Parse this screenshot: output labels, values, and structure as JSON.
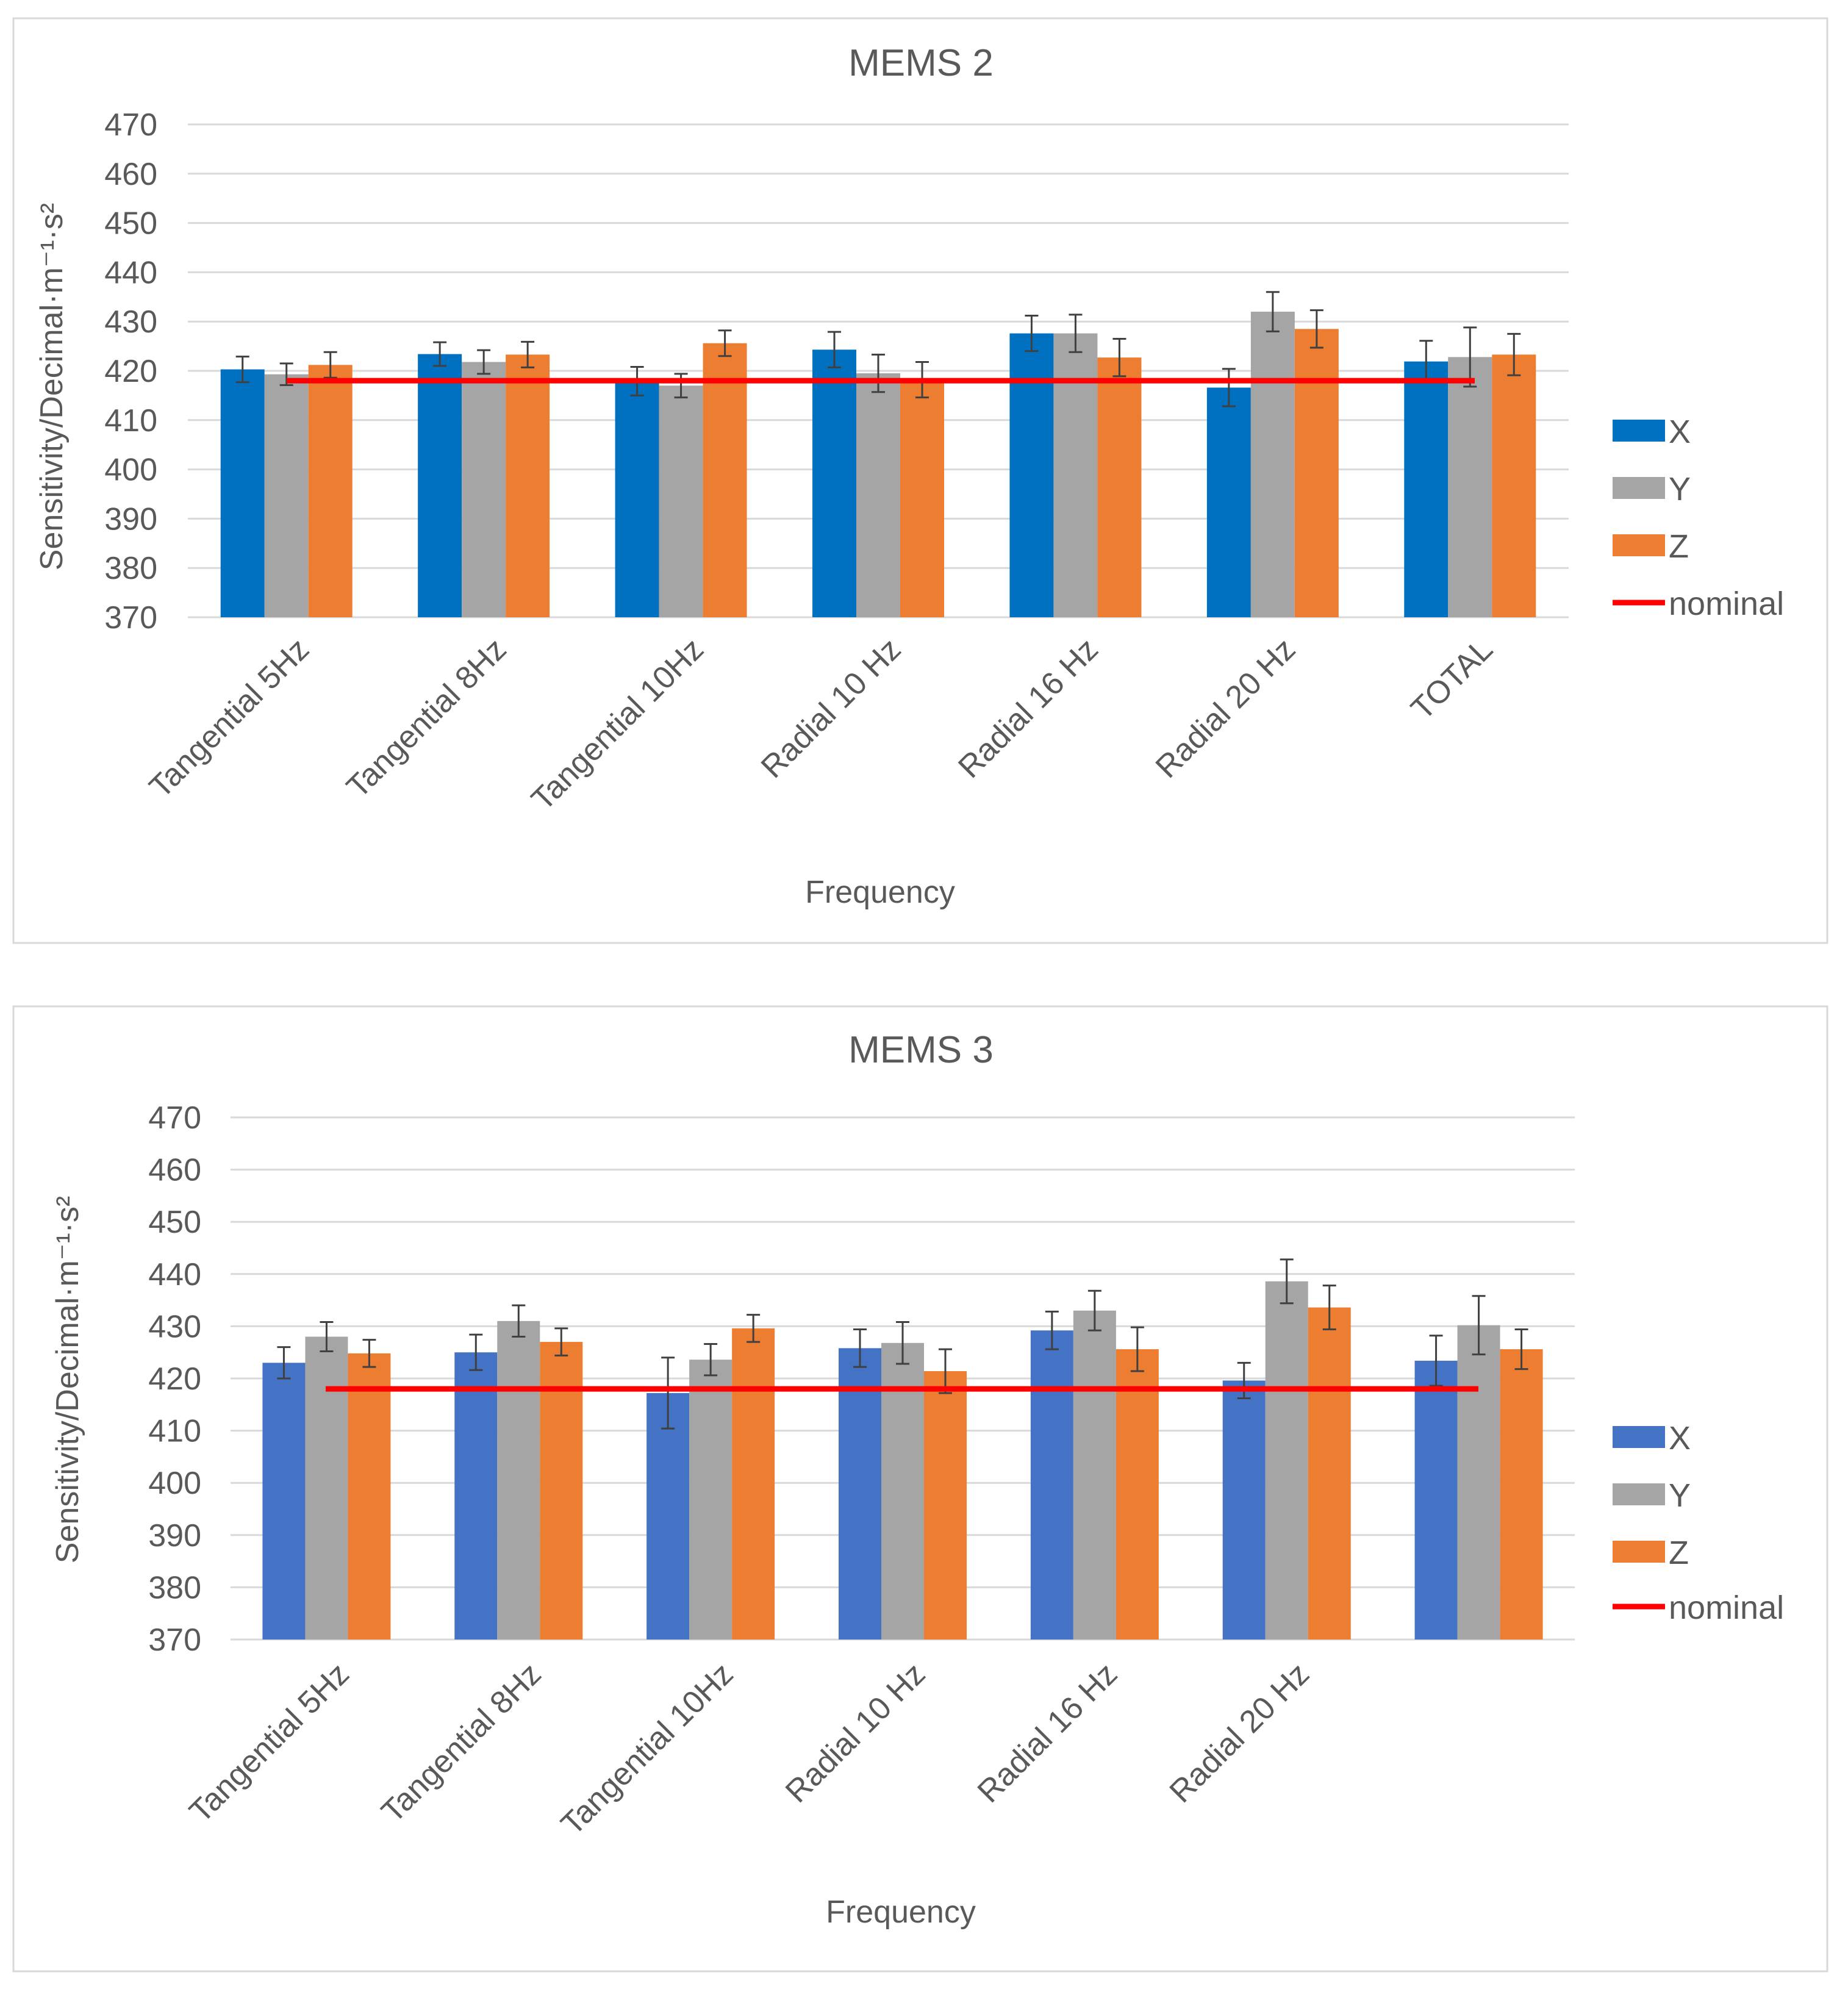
{
  "chart_data": [
    {
      "type": "bar",
      "title": "MEMS 2",
      "xlabel": "Frequency",
      "ylabel": "Sensitivity/Decimal·m⁻¹·s²",
      "ylim": [
        370,
        470
      ],
      "yticks": [
        470,
        460,
        450,
        440,
        430,
        420,
        410,
        400,
        390,
        380,
        370
      ],
      "grid": true,
      "legend_position": "right",
      "categories": [
        "Tangential 5Hz",
        "Tangential 8Hz",
        "Tangential 10Hz",
        "Radial 10 Hz",
        "Radial 16 Hz",
        "Radial 20 Hz",
        "TOTAL"
      ],
      "series": [
        {
          "name": "X",
          "color": "#0070c0",
          "values": [
            420.3,
            423.4,
            417.9,
            424.3,
            427.6,
            416.6,
            421.9
          ],
          "errors": [
            2.6,
            2.4,
            2.9,
            3.6,
            3.6,
            3.8,
            4.2
          ]
        },
        {
          "name": "Y",
          "color": "#a5a5a5",
          "values": [
            419.3,
            421.8,
            417.0,
            419.5,
            427.6,
            432.0,
            422.8
          ],
          "errors": [
            2.2,
            2.4,
            2.4,
            3.8,
            3.8,
            4.0,
            6.0
          ]
        },
        {
          "name": "Z",
          "color": "#ed7d31",
          "values": [
            421.2,
            423.3,
            425.6,
            418.2,
            422.7,
            428.5,
            423.3
          ],
          "errors": [
            2.6,
            2.6,
            2.6,
            3.6,
            3.8,
            3.8,
            4.2
          ]
        }
      ],
      "nominal": {
        "name": "nominal",
        "color": "#ff0000",
        "value": 418
      }
    },
    {
      "type": "bar",
      "title": "MEMS 3",
      "xlabel": "Frequency",
      "ylabel": "Sensitivity/Decimal·m⁻¹·s²",
      "ylim": [
        370,
        470
      ],
      "yticks": [
        470,
        460,
        450,
        440,
        430,
        420,
        410,
        400,
        390,
        380,
        370
      ],
      "grid": true,
      "legend_position": "right",
      "categories": [
        "Tangential 5Hz",
        "Tangential 8Hz",
        "Tangential 10Hz",
        "Radial 10 Hz",
        "Radial 16 Hz",
        "Radial 20 Hz",
        ""
      ],
      "series": [
        {
          "name": "X",
          "color": "#4472c4",
          "values": [
            423.0,
            425.0,
            417.2,
            425.8,
            429.2,
            419.6,
            423.4
          ],
          "errors": [
            3.0,
            3.4,
            6.8,
            3.6,
            3.6,
            3.4,
            4.8
          ]
        },
        {
          "name": "Y",
          "color": "#a5a5a5",
          "values": [
            428.0,
            431.0,
            423.6,
            426.8,
            433.0,
            438.6,
            430.2
          ],
          "errors": [
            2.8,
            3.0,
            3.0,
            4.0,
            3.8,
            4.2,
            5.6
          ]
        },
        {
          "name": "Z",
          "color": "#ed7d31",
          "values": [
            424.8,
            427.0,
            429.6,
            421.4,
            425.6,
            433.6,
            425.6
          ],
          "errors": [
            2.6,
            2.6,
            2.6,
            4.2,
            4.2,
            4.2,
            3.8
          ]
        }
      ],
      "nominal": {
        "name": "nominal",
        "color": "#ff0000",
        "value": 418
      }
    }
  ]
}
